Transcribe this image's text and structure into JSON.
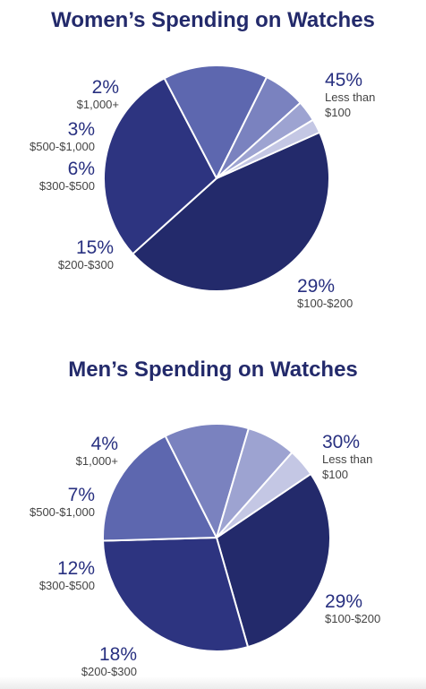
{
  "chart_data": [
    {
      "type": "pie",
      "title": "Women’s Spending on Watches",
      "slices": [
        {
          "pct_label": "45%",
          "category": [
            "Less than",
            "$100"
          ],
          "value": 45,
          "color": "#232a6b"
        },
        {
          "pct_label": "29%",
          "category": [
            "$100-$200"
          ],
          "value": 29,
          "color": "#2d3480"
        },
        {
          "pct_label": "15%",
          "category": [
            "$200-$300"
          ],
          "value": 15,
          "color": "#5d67af"
        },
        {
          "pct_label": "6%",
          "category": [
            "$300-$500"
          ],
          "value": 6,
          "color": "#7a82bf"
        },
        {
          "pct_label": "3%",
          "category": [
            "$500-$1,000"
          ],
          "value": 3,
          "color": "#9da3d1"
        },
        {
          "pct_label": "2%",
          "category": [
            "$1,000+"
          ],
          "value": 2,
          "color": "#c4c7e4"
        }
      ]
    },
    {
      "type": "pie",
      "title": "Men’s Spending on Watches",
      "slices": [
        {
          "pct_label": "30%",
          "category": [
            "Less than",
            "$100"
          ],
          "value": 30,
          "color": "#232a6b"
        },
        {
          "pct_label": "29%",
          "category": [
            "$100-$200"
          ],
          "value": 29,
          "color": "#2d3480"
        },
        {
          "pct_label": "18%",
          "category": [
            "$200-$300"
          ],
          "value": 18,
          "color": "#5d67af"
        },
        {
          "pct_label": "12%",
          "category": [
            "$300-$500"
          ],
          "value": 12,
          "color": "#7a82bf"
        },
        {
          "pct_label": "7%",
          "category": [
            "$500-$1,000"
          ],
          "value": 7,
          "color": "#9da3d1"
        },
        {
          "pct_label": "4%",
          "category": [
            "$1,000+"
          ],
          "value": 4,
          "color": "#c4c7e4"
        }
      ]
    }
  ]
}
